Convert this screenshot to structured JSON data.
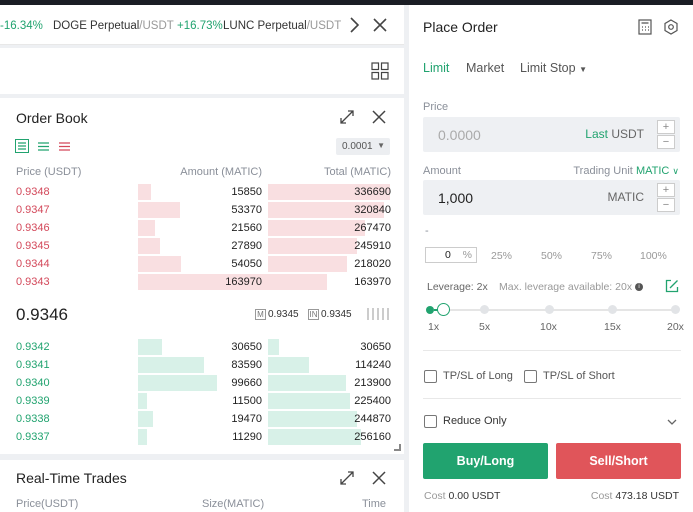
{
  "ticker": {
    "items": [
      {
        "change": "-16.34%"
      },
      {
        "name": "DOGE Perpetual",
        "quote": "/USDT",
        "change": "+16.73%"
      },
      {
        "name": "LUNC Perpetual",
        "quote": "/USDT",
        "tail": "+"
      }
    ]
  },
  "order_book": {
    "title": "Order Book",
    "precision": "0.0001",
    "columns": [
      "Price (USDT)",
      "Amount (MATIC)",
      "Total (MATIC)"
    ],
    "asks": [
      {
        "price": "0.9348",
        "amount": "15850",
        "total": "336690"
      },
      {
        "price": "0.9347",
        "amount": "53370",
        "total": "320840"
      },
      {
        "price": "0.9346",
        "amount": "21560",
        "total": "267470"
      },
      {
        "price": "0.9345",
        "amount": "27890",
        "total": "245910"
      },
      {
        "price": "0.9344",
        "amount": "54050",
        "total": "218020"
      },
      {
        "price": "0.9343",
        "amount": "163970",
        "total": "163970"
      }
    ],
    "last_price": "0.9346",
    "mark_label": "M",
    "mark_price": "0.9345",
    "index_label": "IN",
    "index_price": "0.9345",
    "bids": [
      {
        "price": "0.9342",
        "amount": "30650",
        "total": "30650"
      },
      {
        "price": "0.9341",
        "amount": "83590",
        "total": "114240"
      },
      {
        "price": "0.9340",
        "amount": "99660",
        "total": "213900"
      },
      {
        "price": "0.9339",
        "amount": "11500",
        "total": "225400"
      },
      {
        "price": "0.9338",
        "amount": "19470",
        "total": "244870"
      },
      {
        "price": "0.9337",
        "amount": "11290",
        "total": "256160"
      }
    ]
  },
  "trades": {
    "title": "Real-Time Trades",
    "columns": [
      "Price(USDT)",
      "Size(MATIC)",
      "Time"
    ]
  },
  "place_order": {
    "title": "Place Order",
    "tabs": [
      "Limit",
      "Market",
      "Limit Stop"
    ],
    "price_label": "Price",
    "price_placeholder": "0.0000",
    "price_suffix": "Last",
    "price_unit": "USDT",
    "amount_label": "Amount",
    "trading_unit_label": "Trading Unit",
    "trading_unit_value": "MATIC",
    "amount_value": "1,000",
    "amount_unit": "MATIC",
    "dash": "-",
    "percent_value": "0",
    "percent_sign": "%",
    "percents": [
      "25%",
      "50%",
      "75%",
      "100%"
    ],
    "leverage_label": "Leverage: 2x",
    "max_leverage_label": "Max. leverage available: 20x",
    "leverage_marks": [
      "1x",
      "5x",
      "10x",
      "15x",
      "20x"
    ],
    "tpsl_long": "TP/SL of Long",
    "tpsl_short": "TP/SL of Short",
    "reduce_only": "Reduce Only",
    "buy_label": "Buy/Long",
    "sell_label": "Sell/Short",
    "cost_label": "Cost",
    "cost_long": "0.00 USDT",
    "cost_short": "473.18 USDT",
    "colors": {
      "buy": "#21a36f",
      "sell": "#e0555a",
      "accent": "#21a36f"
    }
  }
}
